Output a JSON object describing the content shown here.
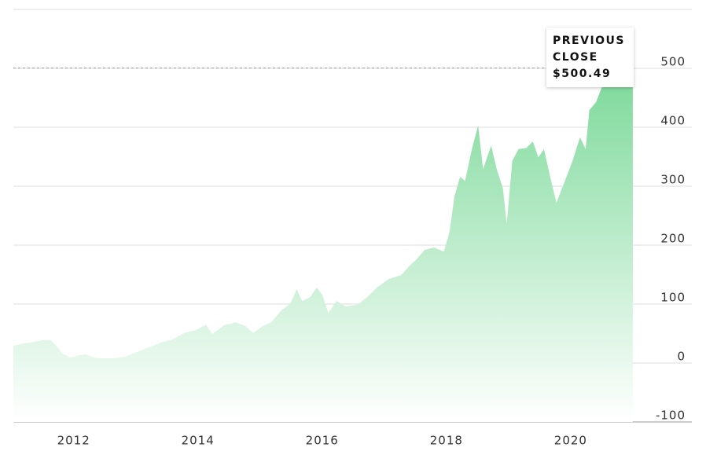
{
  "chart_data": {
    "type": "area",
    "color": "#7dd99a",
    "x": [
      2011.03,
      2011.19,
      2011.32,
      2011.51,
      2011.63,
      2011.72,
      2011.82,
      2011.95,
      2012.08,
      2012.2,
      2012.33,
      2012.46,
      2012.65,
      2012.84,
      2013.03,
      2013.22,
      2013.41,
      2013.59,
      2013.78,
      2013.97,
      2014.13,
      2014.23,
      2014.42,
      2014.61,
      2014.76,
      2014.89,
      2015.05,
      2015.18,
      2015.34,
      2015.49,
      2015.59,
      2015.68,
      2015.81,
      2015.91,
      2016.0,
      2016.1,
      2016.23,
      2016.38,
      2016.57,
      2016.73,
      2016.89,
      2017.08,
      2017.27,
      2017.39,
      2017.52,
      2017.65,
      2017.8,
      2017.96,
      2018.05,
      2018.13,
      2018.22,
      2018.3,
      2018.41,
      2018.51,
      2018.59,
      2018.72,
      2018.81,
      2018.91,
      2018.97,
      2019.06,
      2019.16,
      2019.29,
      2019.39,
      2019.48,
      2019.57,
      2019.67,
      2019.77,
      2019.9,
      2020.03,
      2020.15,
      2020.24,
      2020.3,
      2020.41,
      2020.53,
      2020.66,
      2020.81,
      2021.0
    ],
    "values": [
      29,
      33,
      35,
      39,
      39,
      29,
      16,
      9,
      13,
      15,
      9,
      8,
      8,
      11,
      19,
      27,
      35,
      40,
      51,
      56,
      65,
      49,
      64,
      69,
      63,
      51,
      63,
      69,
      89,
      101,
      125,
      105,
      112,
      128,
      116,
      85,
      105,
      96,
      99,
      112,
      129,
      143,
      149,
      163,
      176,
      192,
      196,
      189,
      223,
      283,
      316,
      309,
      363,
      403,
      329,
      369,
      329,
      296,
      236,
      343,
      363,
      365,
      376,
      349,
      363,
      316,
      272,
      307,
      343,
      383,
      363,
      429,
      443,
      476,
      483,
      472,
      493
    ],
    "xlim": [
      2011.03,
      2021.95
    ],
    "xticks": [
      2012,
      2014,
      2016,
      2018,
      2020
    ],
    "ylim": [
      -100,
      600
    ],
    "yticks": [
      -100,
      0,
      100,
      200,
      300,
      400,
      500
    ],
    "grid": true,
    "annotation": {
      "lines": [
        "PREVIOUS",
        "CLOSE",
        "$500.49"
      ],
      "value": 500.49
    }
  }
}
